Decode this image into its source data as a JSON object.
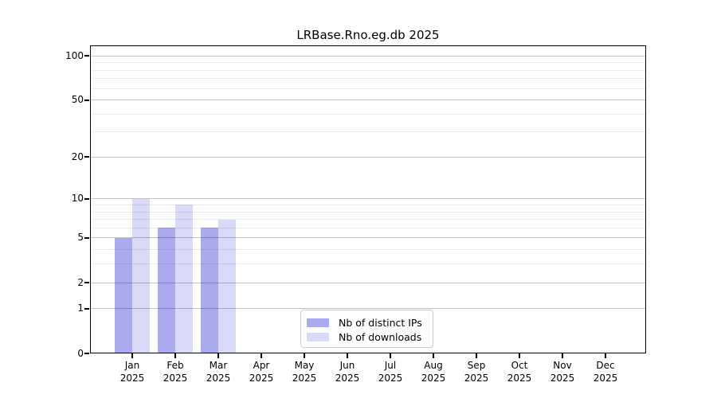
{
  "chart_data": {
    "type": "bar",
    "title": "LRBase.Rno.eg.db 2025",
    "categories": [
      "Jan 2025",
      "Feb 2025",
      "Mar 2025",
      "Apr 2025",
      "May 2025",
      "Jun 2025",
      "Jul 2025",
      "Aug 2025",
      "Sep 2025",
      "Oct 2025",
      "Nov 2025",
      "Dec 2025"
    ],
    "series": [
      {
        "name": "Nb of distinct IPs",
        "color": "#aaaaee",
        "values": [
          5,
          6,
          6,
          0,
          0,
          0,
          0,
          0,
          0,
          0,
          0,
          0
        ]
      },
      {
        "name": "Nb of downloads",
        "color": "#d9d9f8",
        "values": [
          10,
          9,
          7,
          0,
          0,
          0,
          0,
          0,
          0,
          0,
          0,
          0
        ]
      }
    ],
    "xlabel": "",
    "ylabel": "",
    "yscale": "log1p",
    "ylim": [
      0,
      119
    ],
    "y_major_ticks": [
      0,
      1,
      2,
      5,
      10,
      20,
      50,
      100
    ],
    "y_minor_ticks": [
      3,
      4,
      6,
      7,
      8,
      9,
      30,
      40,
      60,
      70,
      80,
      90
    ],
    "grid": "horizontal-only",
    "legend_position": "inside-bottom-center"
  },
  "x_axis": {
    "months": [
      "Jan",
      "Feb",
      "Mar",
      "Apr",
      "May",
      "Jun",
      "Jul",
      "Aug",
      "Sep",
      "Oct",
      "Nov",
      "Dec"
    ],
    "year": "2025"
  },
  "colors": {
    "background": "#ffffff",
    "axis": "#000000",
    "major_grid": "#c2c2c2",
    "minor_grid": "#ebebeb",
    "legend_border": "#cccccc"
  }
}
